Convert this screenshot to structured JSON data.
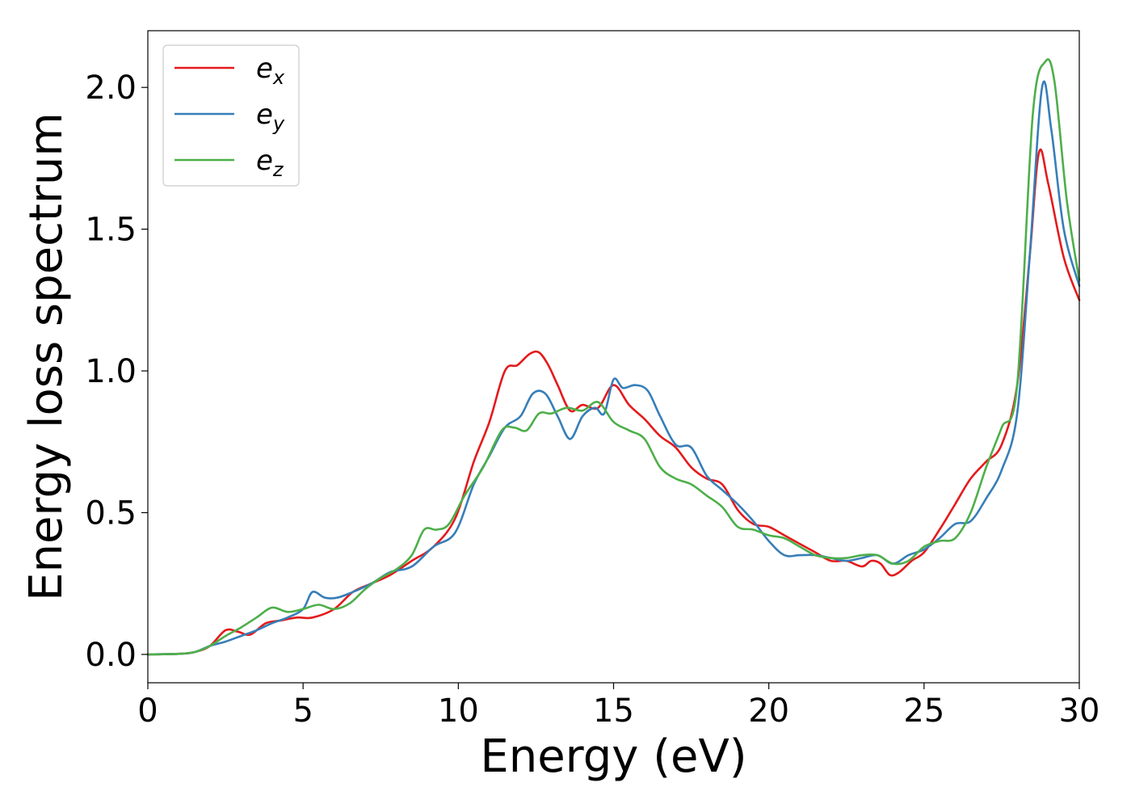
{
  "chart_data": {
    "type": "line",
    "title": "",
    "xlabel": "Energy (eV)",
    "ylabel": "Energy loss spectrum",
    "xlim": [
      0,
      30
    ],
    "ylim": [
      -0.1,
      2.2
    ],
    "xticks": [
      0,
      5,
      10,
      15,
      20,
      25,
      30
    ],
    "xtick_labels": [
      "0",
      "5",
      "10",
      "15",
      "20",
      "25",
      "30"
    ],
    "yticks": [
      0.0,
      0.5,
      1.0,
      1.5,
      2.0
    ],
    "ytick_labels": [
      "0.0",
      "0.5",
      "1.0",
      "1.5",
      "2.0"
    ],
    "grid": false,
    "legend_position": "top-left",
    "series": [
      {
        "name": "e_x",
        "legend_base": "e",
        "legend_sub": "x",
        "color": "#e41a1c",
        "x": [
          0,
          1,
          1.5,
          2,
          2.5,
          2.9,
          3.3,
          3.8,
          4.3,
          4.8,
          5.3,
          6,
          6.6,
          7.2,
          7.8,
          8.5,
          9.2,
          9.9,
          10.5,
          11,
          11.5,
          11.9,
          12.3,
          12.6,
          12.9,
          13.2,
          13.6,
          14,
          14.5,
          15,
          15.5,
          16,
          16.5,
          17,
          17.5,
          18,
          18.5,
          19,
          19.5,
          20,
          20.5,
          21,
          21.5,
          22,
          22.5,
          23,
          23.3,
          23.6,
          23.9,
          24.2,
          24.6,
          25,
          25.5,
          26,
          26.5,
          27,
          27.5,
          28,
          28.4,
          28.7,
          29,
          29.5,
          30
        ],
        "y": [
          0.0,
          0.002,
          0.008,
          0.03,
          0.085,
          0.08,
          0.07,
          0.11,
          0.12,
          0.13,
          0.13,
          0.16,
          0.22,
          0.25,
          0.28,
          0.33,
          0.38,
          0.48,
          0.68,
          0.82,
          1.0,
          1.02,
          1.06,
          1.065,
          1.02,
          0.95,
          0.86,
          0.88,
          0.87,
          0.95,
          0.88,
          0.83,
          0.77,
          0.73,
          0.66,
          0.62,
          0.6,
          0.51,
          0.46,
          0.45,
          0.42,
          0.39,
          0.36,
          0.33,
          0.33,
          0.31,
          0.33,
          0.32,
          0.28,
          0.29,
          0.33,
          0.36,
          0.44,
          0.53,
          0.62,
          0.68,
          0.74,
          0.95,
          1.4,
          1.77,
          1.66,
          1.4,
          1.25
        ]
      },
      {
        "name": "e_y",
        "legend_base": "e",
        "legend_sub": "y",
        "color": "#377eb8",
        "x": [
          0,
          1,
          1.5,
          2,
          2.5,
          3,
          3.5,
          4,
          4.5,
          5,
          5.3,
          5.7,
          6.1,
          6.6,
          7.2,
          7.8,
          8.5,
          9.2,
          9.9,
          10.5,
          11,
          11.5,
          12,
          12.4,
          12.8,
          13.2,
          13.6,
          14,
          14.4,
          14.7,
          15,
          15.3,
          15.7,
          16.1,
          16.5,
          17,
          17.5,
          18,
          18.5,
          19,
          19.5,
          20,
          20.5,
          21,
          21.5,
          22,
          22.5,
          23,
          23.5,
          24,
          24.5,
          25,
          25.5,
          26,
          26.5,
          27,
          27.5,
          28,
          28.4,
          28.8,
          29.1,
          29.5,
          30
        ],
        "y": [
          0.0,
          0.002,
          0.008,
          0.03,
          0.045,
          0.065,
          0.085,
          0.11,
          0.13,
          0.16,
          0.22,
          0.2,
          0.2,
          0.22,
          0.25,
          0.29,
          0.31,
          0.38,
          0.43,
          0.6,
          0.7,
          0.8,
          0.84,
          0.92,
          0.92,
          0.84,
          0.76,
          0.84,
          0.87,
          0.85,
          0.97,
          0.94,
          0.95,
          0.93,
          0.84,
          0.74,
          0.73,
          0.63,
          0.58,
          0.53,
          0.47,
          0.4,
          0.35,
          0.35,
          0.35,
          0.34,
          0.33,
          0.34,
          0.35,
          0.32,
          0.35,
          0.37,
          0.41,
          0.46,
          0.47,
          0.55,
          0.65,
          0.85,
          1.4,
          2.0,
          1.85,
          1.5,
          1.3
        ]
      },
      {
        "name": "e_z",
        "legend_base": "e",
        "legend_sub": "z",
        "color": "#4daf4a",
        "x": [
          0,
          1,
          1.5,
          2,
          2.5,
          3,
          3.5,
          4,
          4.5,
          5,
          5.5,
          6,
          6.5,
          7,
          7.5,
          8,
          8.5,
          8.9,
          9.3,
          9.7,
          10.2,
          10.8,
          11.4,
          11.8,
          12.2,
          12.6,
          13,
          13.5,
          14,
          14.5,
          15,
          15.5,
          16,
          16.5,
          17,
          17.5,
          18,
          18.5,
          19,
          19.5,
          20,
          20.5,
          21,
          21.5,
          22,
          22.5,
          23,
          23.5,
          24,
          24.5,
          25,
          25.5,
          26,
          26.5,
          27,
          27.5,
          28,
          28.5,
          28.9,
          29.2,
          29.6,
          30
        ],
        "y": [
          0.0,
          0.002,
          0.008,
          0.03,
          0.065,
          0.095,
          0.13,
          0.165,
          0.15,
          0.16,
          0.175,
          0.16,
          0.18,
          0.23,
          0.27,
          0.3,
          0.35,
          0.44,
          0.44,
          0.46,
          0.56,
          0.66,
          0.79,
          0.8,
          0.79,
          0.85,
          0.85,
          0.87,
          0.86,
          0.89,
          0.82,
          0.79,
          0.76,
          0.66,
          0.62,
          0.6,
          0.56,
          0.52,
          0.45,
          0.44,
          0.42,
          0.41,
          0.38,
          0.35,
          0.34,
          0.34,
          0.35,
          0.35,
          0.32,
          0.33,
          0.38,
          0.4,
          0.41,
          0.5,
          0.66,
          0.8,
          0.95,
          1.9,
          2.09,
          2.02,
          1.6,
          1.32
        ]
      }
    ]
  }
}
